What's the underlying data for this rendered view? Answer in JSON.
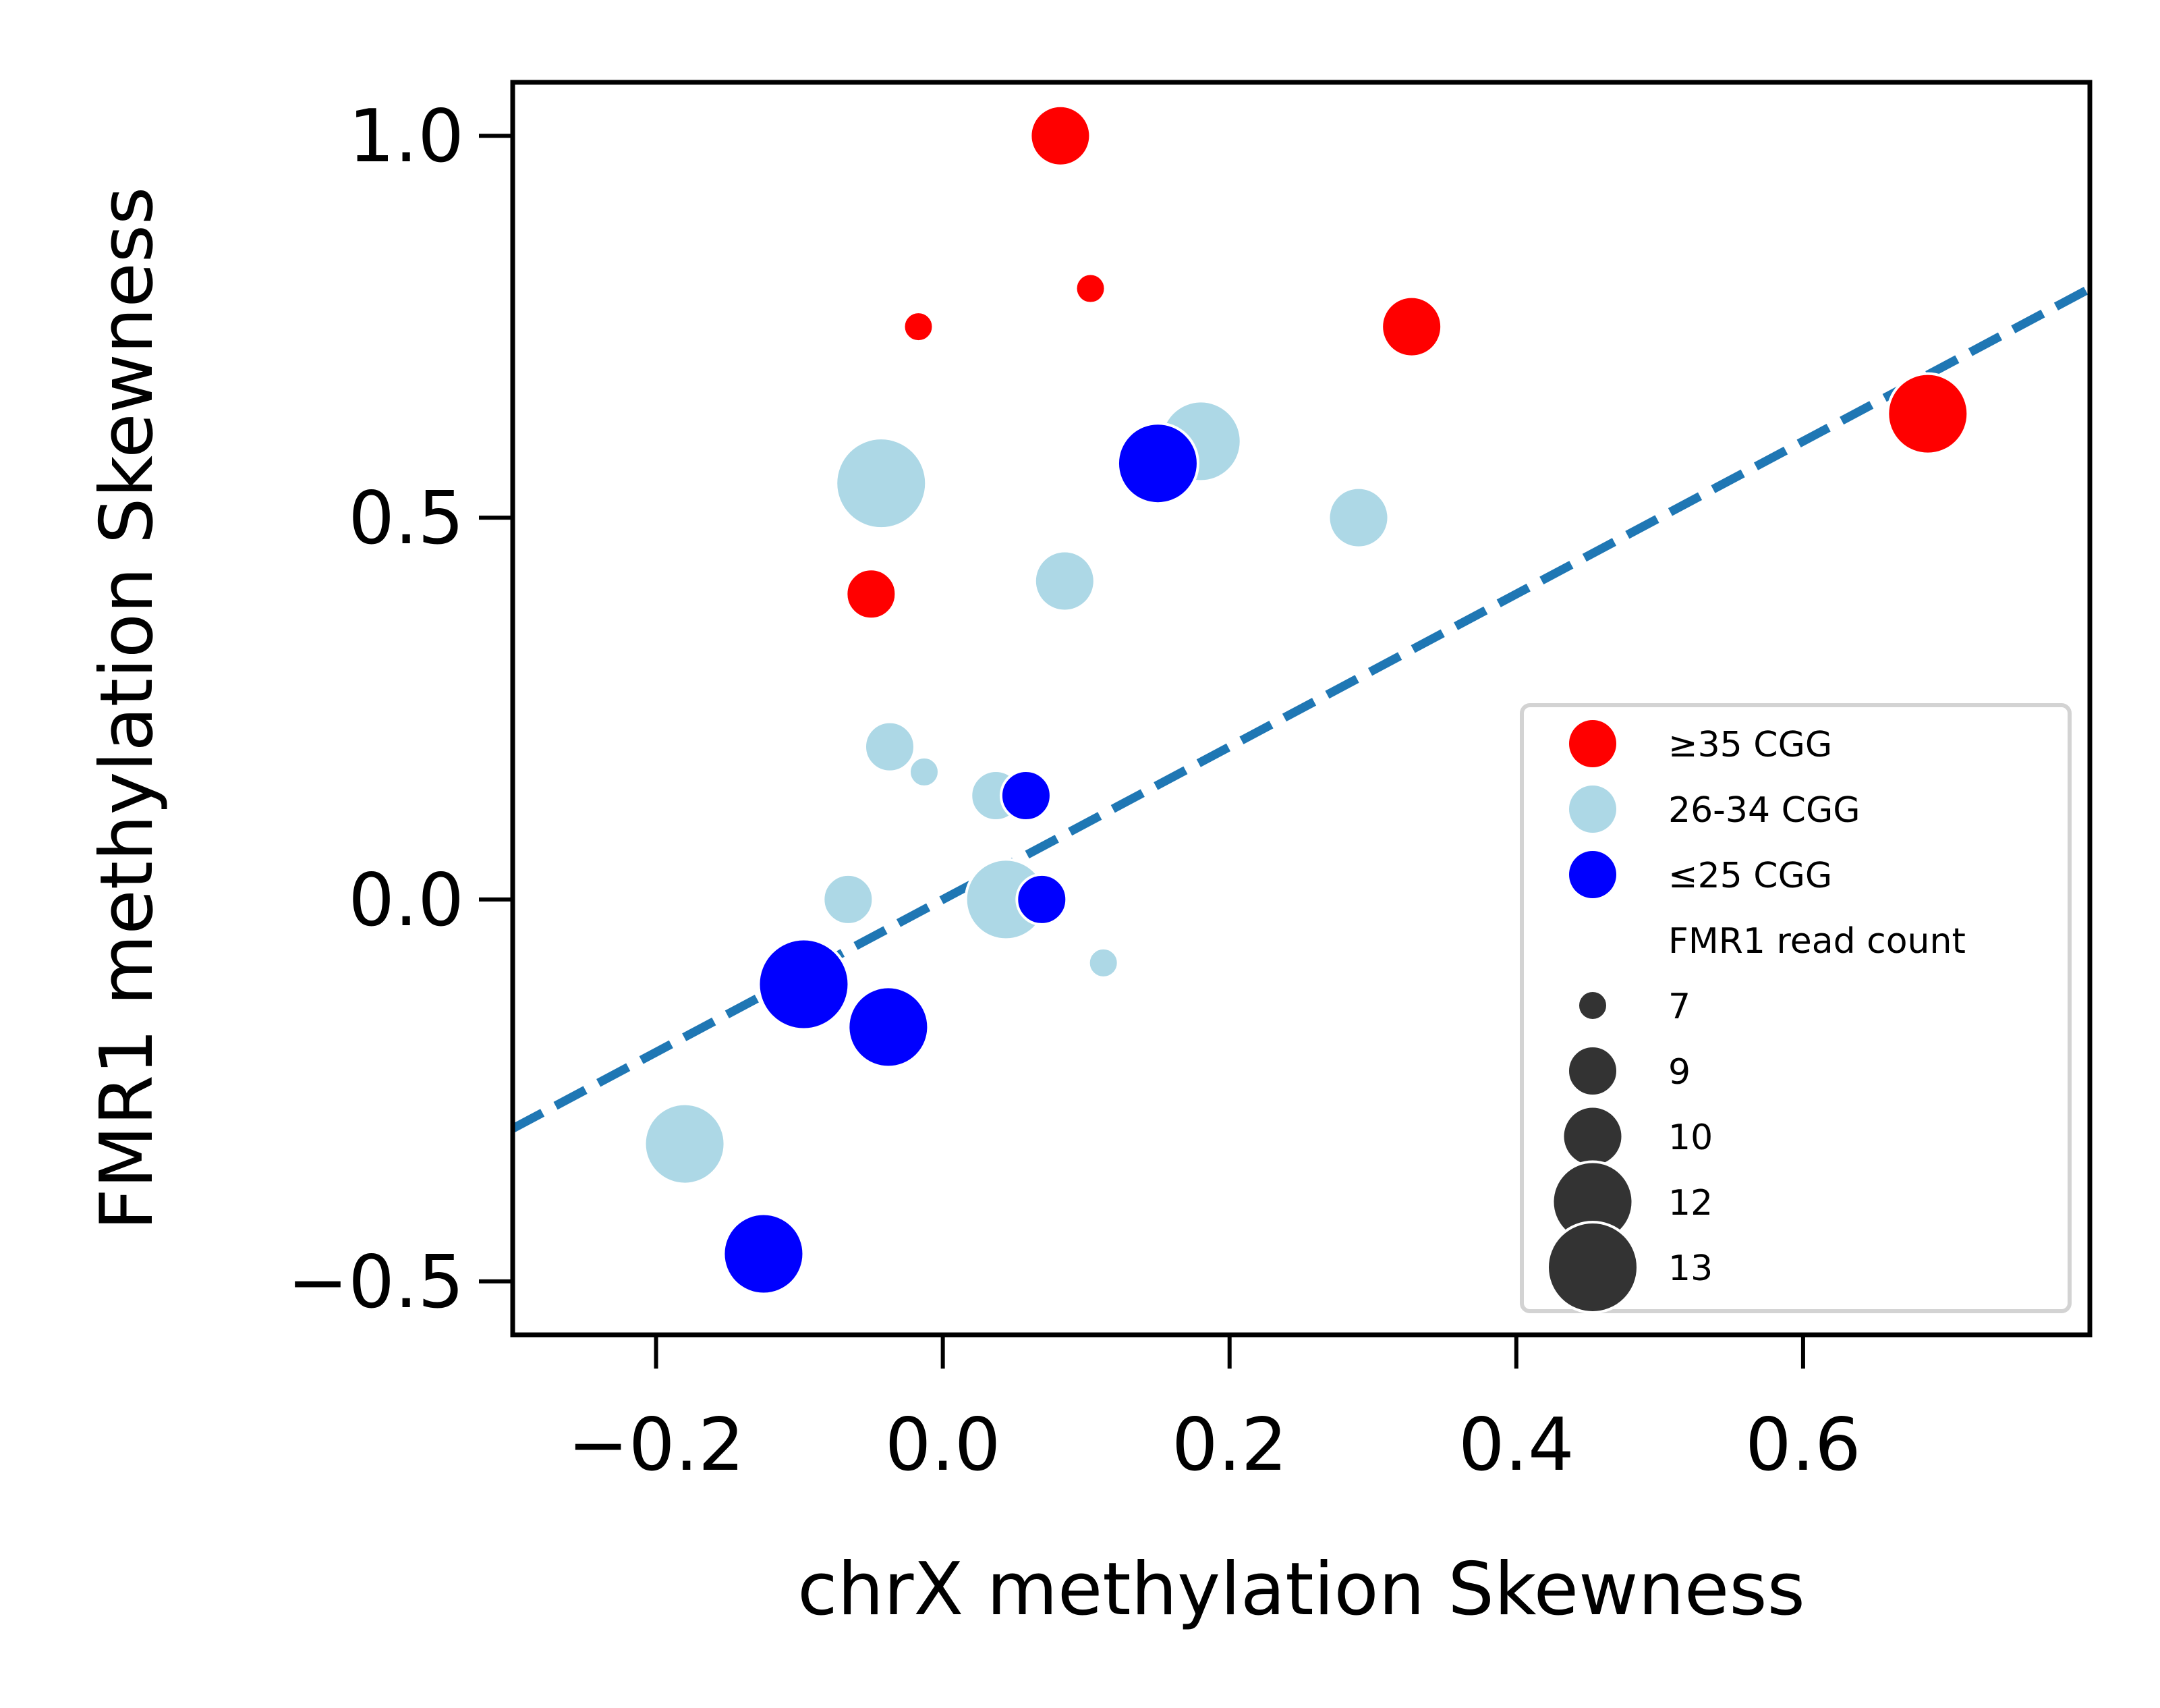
{
  "chart_data": {
    "type": "scatter",
    "title": "",
    "xlabel": "chrX methylation Skewness",
    "ylabel": "FMR1 methylation Skewness",
    "xlim": [
      -0.3,
      0.8
    ],
    "ylim": [
      -0.57,
      1.07
    ],
    "xticks": [
      -0.2,
      0.0,
      0.2,
      0.4,
      0.6
    ],
    "xtick_labels": [
      "−0.2",
      "0.0",
      "0.2",
      "0.4",
      "0.6"
    ],
    "yticks": [
      1.0,
      0.5,
      0.0,
      -0.5
    ],
    "ytick_labels": [
      "1.0",
      "0.5",
      "0.0",
      "−0.5"
    ],
    "grid": false,
    "legend_position": "lower right",
    "hue_groups": [
      {
        "label": "≥35 CGG",
        "color": "#ff0000"
      },
      {
        "label": "26-34 CGG",
        "color": "#add8e6"
      },
      {
        "label": "≤25 CGG",
        "color": "#0000ff"
      }
    ],
    "size_title": "FMR1 read count",
    "size_levels": [
      7,
      9,
      10,
      12,
      13
    ],
    "series": [
      {
        "name": "≥35 CGG",
        "color": "#ff0000",
        "points": [
          {
            "x": 0.082,
            "y": 1.0,
            "size": 10
          },
          {
            "x": 0.103,
            "y": 0.8,
            "size": 7
          },
          {
            "x": -0.017,
            "y": 0.75,
            "size": 7
          },
          {
            "x": 0.327,
            "y": 0.75,
            "size": 10
          },
          {
            "x": 0.687,
            "y": 0.636,
            "size": 12
          },
          {
            "x": -0.05,
            "y": 0.4,
            "size": 9
          }
        ]
      },
      {
        "name": "26-34 CGG",
        "color": "#add8e6",
        "points": [
          {
            "x": -0.043,
            "y": 0.545,
            "size": 13
          },
          {
            "x": 0.18,
            "y": 0.6,
            "size": 12
          },
          {
            "x": 0.29,
            "y": 0.5,
            "size": 10
          },
          {
            "x": 0.085,
            "y": 0.417,
            "size": 10
          },
          {
            "x": -0.037,
            "y": 0.2,
            "size": 9
          },
          {
            "x": -0.013,
            "y": 0.167,
            "size": 7
          },
          {
            "x": 0.037,
            "y": 0.136,
            "size": 9
          },
          {
            "x": -0.066,
            "y": 0.0,
            "size": 9
          },
          {
            "x": 0.044,
            "y": 0.0,
            "size": 12
          },
          {
            "x": 0.112,
            "y": -0.083,
            "size": 7
          },
          {
            "x": -0.18,
            "y": -0.32,
            "size": 12
          }
        ]
      },
      {
        "name": "≤25 CGG",
        "color": "#0000ff",
        "points": [
          {
            "x": 0.15,
            "y": 0.571,
            "size": 12
          },
          {
            "x": 0.058,
            "y": 0.136,
            "size": 9
          },
          {
            "x": 0.069,
            "y": 0.0,
            "size": 9
          },
          {
            "x": -0.097,
            "y": -0.111,
            "size": 13
          },
          {
            "x": -0.038,
            "y": -0.167,
            "size": 12
          },
          {
            "x": -0.125,
            "y": -0.464,
            "size": 12
          }
        ]
      }
    ],
    "trend_line": {
      "style": "dashed",
      "color": "#1f77b4",
      "points": [
        [
          -0.3,
          -0.3
        ],
        [
          0.8,
          0.8
        ]
      ]
    }
  }
}
